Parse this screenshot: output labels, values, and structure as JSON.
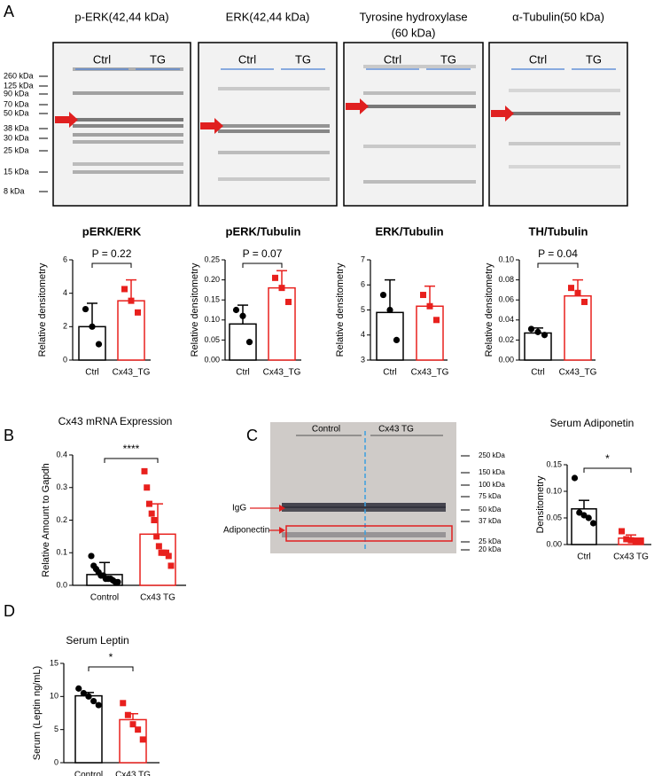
{
  "panel_labels": [
    "A",
    "B",
    "C",
    "D"
  ],
  "blots": [
    {
      "title": [
        "p-ERK(42,44 kDa)"
      ],
      "groups": [
        "Ctrl",
        "TG"
      ]
    },
    {
      "title": [
        "ERK(42,44 kDa)"
      ],
      "groups": [
        "Ctrl",
        "TG"
      ]
    },
    {
      "title": [
        "Tyrosine hydroxylase",
        "(60 kDa)"
      ],
      "groups": [
        "Ctrl",
        "TG"
      ]
    },
    {
      "title": [
        "α-Tubulin(50 kDa)"
      ],
      "groups": [
        "Ctrl",
        "TG"
      ]
    }
  ],
  "blot_markers": [
    "260 kDa",
    "125 kDa",
    "90 kDa",
    "70 kDa",
    "50 kDa",
    "38 kDa",
    "30 kDa",
    "25 kDa",
    "15 kDa",
    "8 kDa"
  ],
  "adiponectin_blot": {
    "groups": [
      "Control",
      "Cx43 TG"
    ],
    "markers": [
      "250 kDa",
      "150 kDa",
      "100 kDa",
      "75 kDa",
      "50 kDa",
      "37 kDa",
      "25 kDa",
      "20 kDa"
    ],
    "labels": [
      "IgG",
      "Adiponectin"
    ]
  },
  "chart_data": [
    {
      "type": "bar",
      "title": "pERK/ERK",
      "ylabel": "Relative densitometry",
      "categories": [
        "Ctrl",
        "Cx43_TG"
      ],
      "values": [
        2.0,
        3.55
      ],
      "errors": [
        1.4,
        1.25
      ],
      "points": [
        [
          3.05,
          2.0,
          0.95
        ],
        [
          4.25,
          3.55,
          2.85
        ]
      ],
      "colors": [
        "#000000",
        "#e8201d"
      ],
      "ylim": [
        0,
        6
      ],
      "yticks": [
        0,
        2,
        4,
        6
      ],
      "annotation": "P = 0.22"
    },
    {
      "type": "bar",
      "title": "pERK/Tubulin",
      "ylabel": "Relative densitometry",
      "categories": [
        "Ctrl",
        "Cx43_TG"
      ],
      "values": [
        0.09,
        0.18
      ],
      "errors": [
        0.047,
        0.043
      ],
      "points": [
        [
          0.125,
          0.11,
          0.045
        ],
        [
          0.205,
          0.18,
          0.145
        ]
      ],
      "colors": [
        "#000000",
        "#e8201d"
      ],
      "ylim": [
        0,
        0.25
      ],
      "yticks": [
        {
          "value": 0,
          "label": "0.00"
        },
        {
          "value": 0.05,
          "label": "0.05"
        },
        {
          "value": 0.1,
          "label": "0.10"
        },
        {
          "value": 0.15,
          "label": "0.15"
        },
        {
          "value": 0.2,
          "label": "0.20"
        },
        {
          "value": 0.25,
          "label": "0.25"
        }
      ],
      "annotation": "P = 0.07"
    },
    {
      "type": "bar",
      "title": "ERK/Tubulin",
      "ylabel": "Relative densitometry",
      "categories": [
        "Ctrl",
        "Cx43_TG"
      ],
      "values": [
        4.9,
        5.15
      ],
      "errors": [
        1.3,
        0.8
      ],
      "points": [
        [
          5.6,
          5.0,
          3.8
        ],
        [
          5.6,
          5.15,
          4.6
        ]
      ],
      "colors": [
        "#000000",
        "#e8201d"
      ],
      "ylim": [
        3,
        7
      ],
      "yticks": [
        3,
        4,
        5,
        6,
        7
      ]
    },
    {
      "type": "bar",
      "title": "TH/Tubulin",
      "ylabel": "Relative densitometry",
      "categories": [
        "Ctrl",
        "Cx43_TG"
      ],
      "values": [
        0.027,
        0.064
      ],
      "errors": [
        0.005,
        0.016
      ],
      "points": [
        [
          0.031,
          0.028,
          0.025
        ],
        [
          0.072,
          0.067,
          0.058
        ]
      ],
      "colors": [
        "#000000",
        "#e8201d"
      ],
      "ylim": [
        0,
        0.1
      ],
      "yticks": [
        {
          "value": 0,
          "label": "0.00"
        },
        {
          "value": 0.02,
          "label": "0.02"
        },
        {
          "value": 0.04,
          "label": "0.04"
        },
        {
          "value": 0.06,
          "label": "0.06"
        },
        {
          "value": 0.08,
          "label": "0.08"
        },
        {
          "value": 0.1,
          "label": "0.10"
        }
      ],
      "annotation": "P = 0.04"
    },
    {
      "type": "bar",
      "title": "Cx43 mRNA Expression",
      "ylabel": "Relative Amount to Gapdh",
      "categories": [
        "Control",
        "Cx43 TG"
      ],
      "values": [
        0.033,
        0.157
      ],
      "errors": [
        0.037,
        0.093
      ],
      "points": [
        [
          0.09,
          0.06,
          0.05,
          0.04,
          0.03,
          0.03,
          0.02,
          0.02,
          0.02,
          0.015,
          0.01,
          0.01
        ],
        [
          0.35,
          0.3,
          0.25,
          0.22,
          0.2,
          0.15,
          0.12,
          0.1,
          0.1,
          0.1,
          0.09,
          0.06
        ]
      ],
      "colors": [
        "#000000",
        "#e8201d"
      ],
      "ylim": [
        0,
        0.4
      ],
      "yticks": [
        {
          "value": 0,
          "label": "0.0"
        },
        {
          "value": 0.1,
          "label": "0.1"
        },
        {
          "value": 0.2,
          "label": "0.2"
        },
        {
          "value": 0.3,
          "label": "0.3"
        },
        {
          "value": 0.4,
          "label": "0.4"
        }
      ],
      "annotation": "****"
    },
    {
      "type": "bar",
      "title": "Serum Adiponetin",
      "ylabel": "Densitometry",
      "categories": [
        "Ctrl",
        "Cx43 TG"
      ],
      "values": [
        0.067,
        0.012
      ],
      "errors": [
        0.016,
        0.006
      ],
      "points": [
        [
          0.125,
          0.06,
          0.055,
          0.05,
          0.04
        ],
        [
          0.025,
          0.01,
          0.008,
          0.005,
          0.005
        ]
      ],
      "colors": [
        "#000000",
        "#e8201d"
      ],
      "ylim": [
        0,
        0.15
      ],
      "yticks": [
        {
          "value": 0,
          "label": "0.00"
        },
        {
          "value": 0.05,
          "label": "0.05"
        },
        {
          "value": 0.1,
          "label": "0.10"
        },
        {
          "value": 0.15,
          "label": "0.15"
        }
      ],
      "annotation": "*"
    },
    {
      "type": "bar",
      "title": "Serum Leptin",
      "ylabel": "Serum (Leptin ng/mL)",
      "categories": [
        "Control",
        "Cx43 TG"
      ],
      "values": [
        10.1,
        6.5
      ],
      "errors": [
        0.5,
        0.9
      ],
      "points": [
        [
          11.2,
          10.5,
          10.0,
          9.3,
          8.7
        ],
        [
          9.0,
          7.2,
          5.8,
          5.0,
          3.5
        ]
      ],
      "colors": [
        "#000000",
        "#e8201d"
      ],
      "ylim": [
        0,
        15
      ],
      "yticks": [
        0,
        5,
        10,
        15
      ],
      "annotation": "*"
    }
  ]
}
